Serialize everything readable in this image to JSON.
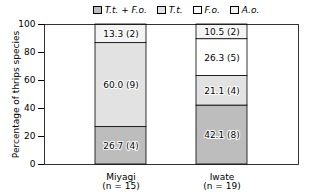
{
  "chart_data": {
    "type": "bar",
    "stacked": true,
    "data_labels": true,
    "legend": "top",
    "categories": [
      "Miyagi\n(n = 15)",
      "Iwate\n(n = 19)"
    ],
    "series": [
      {
        "name": "T.t. + F.o.",
        "color": "#bdbdbd",
        "values": [
          26.7,
          42.1
        ],
        "value_labels": [
          "26.7 (4)",
          "42.1 (8)"
        ]
      },
      {
        "name": "T.t.",
        "color": "#e2e2e2",
        "values": [
          60.0,
          21.1
        ],
        "value_labels": [
          "60.0 (9)",
          "21.1 (4)"
        ]
      },
      {
        "name": "F.o.",
        "color": "#ffffff",
        "values": [
          0,
          26.3
        ],
        "value_labels": [
          null,
          "26.3 (5)"
        ]
      },
      {
        "name": "A.o.",
        "color": "#f3f3f3",
        "values": [
          13.3,
          10.5
        ],
        "value_labels": [
          "13.3 (2)",
          "10.5 (2)"
        ]
      }
    ],
    "y_label": "Percentage of thrips species",
    "ylim": [
      0,
      100
    ],
    "yticks": [
      0,
      20,
      40,
      60,
      80,
      100
    ]
  }
}
